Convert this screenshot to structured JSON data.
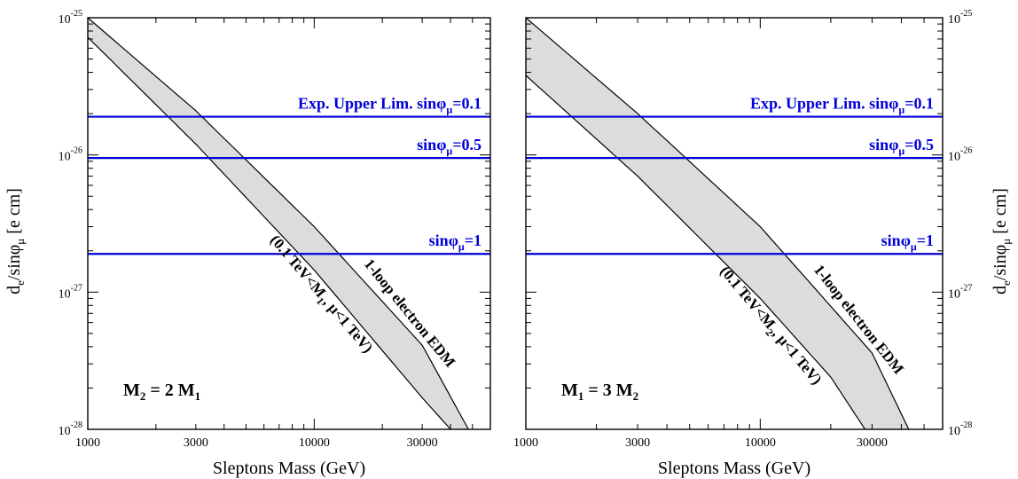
{
  "chart_data": [
    {
      "type": "area",
      "panel": "left",
      "xlabel": "Sleptons Mass (GeV)",
      "ylabel": "d_e/sinφ_μ  [e cm]",
      "ylabel_parts": {
        "d": "d",
        "e": "e",
        "mid": "/sinφ",
        "mu": "μ",
        "unit": "[e cm]"
      },
      "xscale": "log",
      "yscale": "log",
      "xlim": [
        1000,
        60000
      ],
      "ylim": [
        1e-28,
        1e-25
      ],
      "xticks": [
        {
          "value": 1000,
          "label": "1000"
        },
        {
          "value": 3000,
          "label": "3000"
        },
        {
          "value": 10000,
          "label": "10000"
        },
        {
          "value": 30000,
          "label": "30000"
        }
      ],
      "yticks": [
        {
          "value": 1e-25,
          "base": "10",
          "exp": "-25"
        },
        {
          "value": 1e-26,
          "base": "10",
          "exp": "-26"
        },
        {
          "value": 1e-27,
          "base": "10",
          "exp": "-27"
        },
        {
          "value": 1e-28,
          "base": "10",
          "exp": "-28"
        }
      ],
      "ytick_side": "left",
      "band_upper": {
        "x": [
          1000,
          3000,
          10000,
          30000,
          48000
        ],
        "y": [
          1e-25,
          2.1e-26,
          3e-27,
          4.1e-28,
          1e-28
        ]
      },
      "band_lower": {
        "x": [
          1000,
          3000,
          10000,
          30000,
          40000
        ],
        "y": [
          7.2e-26,
          1.2e-26,
          1.45e-27,
          1.7e-28,
          1e-28
        ]
      },
      "limit_lines": [
        {
          "y": 1.9e-26
        },
        {
          "y": 9.5e-27
        },
        {
          "y": 1.9e-27
        }
      ],
      "limit_labels": [
        {
          "prefix": "Exp. Upper Lim.  sinφ",
          "sub": "μ",
          "suffix": "=0.1"
        },
        {
          "prefix": "sinφ",
          "sub": "μ",
          "suffix": "=0.5"
        },
        {
          "prefix": "sinφ",
          "sub": "μ",
          "suffix": "=1"
        }
      ],
      "band_label_upper": "1-loop electron EDM",
      "band_label_lower": {
        "pre": "(0.1 TeV<M",
        "sub": "1",
        "post": ", μ<1 TeV)"
      },
      "mass_relation": {
        "a": "M",
        "a_sub": "2",
        "mid": " = 2 M",
        "b_sub": "1"
      },
      "colors": {
        "band": "#dcdcdc",
        "limit": "#0000d8"
      }
    },
    {
      "type": "area",
      "panel": "right",
      "xlabel": "Sleptons Mass (GeV)",
      "ylabel": "d_e/sinφ_μ  [e cm]",
      "ylabel_parts": {
        "d": "d",
        "e": "e",
        "mid": "/sinφ",
        "mu": "μ",
        "unit": "[e cm]"
      },
      "xscale": "log",
      "yscale": "log",
      "xlim": [
        1000,
        60000
      ],
      "ylim": [
        1e-28,
        1e-25
      ],
      "xticks": [
        {
          "value": 1000,
          "label": "1000"
        },
        {
          "value": 3000,
          "label": "3000"
        },
        {
          "value": 10000,
          "label": "10000"
        },
        {
          "value": 30000,
          "label": "30000"
        }
      ],
      "yticks": [
        {
          "value": 1e-25,
          "base": "10",
          "exp": "-25"
        },
        {
          "value": 1e-26,
          "base": "10",
          "exp": "-26"
        },
        {
          "value": 1e-27,
          "base": "10",
          "exp": "-27"
        },
        {
          "value": 1e-28,
          "base": "10",
          "exp": "-28"
        }
      ],
      "ytick_side": "right",
      "band_upper": {
        "x": [
          1000,
          3000,
          10000,
          30000,
          43000
        ],
        "y": [
          1e-25,
          2e-26,
          3e-27,
          3.6e-28,
          1e-28
        ]
      },
      "band_lower": {
        "x": [
          1000,
          3000,
          10000,
          20000,
          28000
        ],
        "y": [
          3.8e-26,
          7e-27,
          9e-28,
          2.4e-28,
          1e-28
        ]
      },
      "limit_lines": [
        {
          "y": 1.9e-26
        },
        {
          "y": 9.5e-27
        },
        {
          "y": 1.9e-27
        }
      ],
      "limit_labels": [
        {
          "prefix": "Exp. Upper Lim.  sinφ",
          "sub": "μ",
          "suffix": "=0.1"
        },
        {
          "prefix": "sinφ",
          "sub": "μ",
          "suffix": "=0.5"
        },
        {
          "prefix": "sinφ",
          "sub": "μ",
          "suffix": "=1"
        }
      ],
      "band_label_upper": "1-loop electron EDM",
      "band_label_lower": {
        "pre": "(0.1 TeV<M",
        "sub": "2",
        "post": ", μ<1 TeV)"
      },
      "mass_relation": {
        "a": "M",
        "a_sub": "1",
        "mid": " = 3 M",
        "b_sub": "2"
      },
      "colors": {
        "band": "#dcdcdc",
        "limit": "#0000d8"
      }
    }
  ]
}
